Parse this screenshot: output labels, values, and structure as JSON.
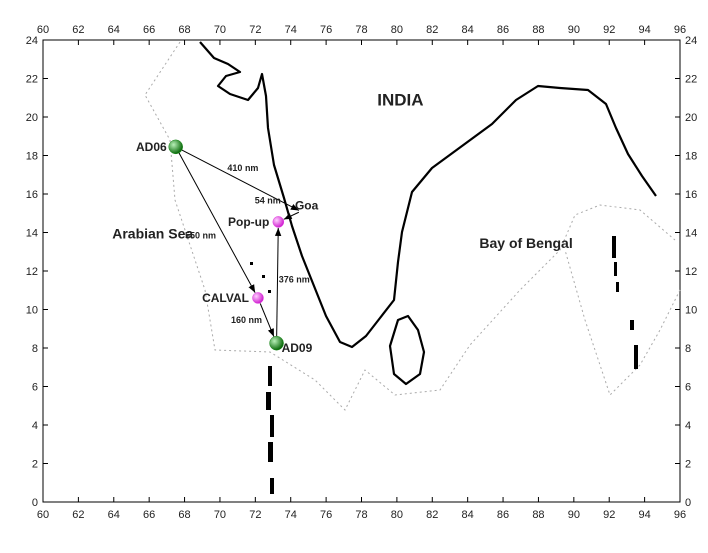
{
  "map": {
    "xlim": [
      60,
      96
    ],
    "ylim": [
      0,
      24
    ],
    "xticks": [
      60,
      62,
      64,
      66,
      68,
      70,
      72,
      74,
      76,
      78,
      80,
      82,
      84,
      86,
      88,
      90,
      92,
      94,
      96
    ],
    "yticks": [
      0,
      2,
      4,
      6,
      8,
      10,
      12,
      14,
      16,
      18,
      20,
      22,
      24
    ],
    "regions": [
      {
        "label": "INDIA",
        "lon": 80.2,
        "lat": 20.6
      },
      {
        "label": "Arabian Sea",
        "lon": 66.2,
        "lat": 13.7
      },
      {
        "label": "Bay of Bengal",
        "lon": 87.3,
        "lat": 13.2
      },
      {
        "label": "Goa",
        "lon": 74.9,
        "lat": 15.2
      }
    ],
    "stations": [
      {
        "label": "AD06",
        "lon": 67.5,
        "lat": 18.45,
        "color": "#1e8a1e"
      },
      {
        "label": "Pop-up",
        "lon": 73.3,
        "lat": 14.55,
        "color": "#e040e0"
      },
      {
        "label": "CALVAL",
        "lon": 72.15,
        "lat": 10.6,
        "color": "#e040e0"
      },
      {
        "label": "AD09",
        "lon": 73.2,
        "lat": 8.25,
        "color": "#1e8a1e"
      }
    ],
    "distances": [
      {
        "label": "410 nm",
        "lon": 71.3,
        "lat": 17.2
      },
      {
        "label": "54 nm",
        "lon": 72.7,
        "lat": 15.5
      },
      {
        "label": "550 nm",
        "lon": 68.9,
        "lat": 13.7
      },
      {
        "label": "376 nm",
        "lon": 74.2,
        "lat": 11.4
      },
      {
        "label": "160 nm",
        "lon": 71.5,
        "lat": 9.3
      }
    ]
  }
}
